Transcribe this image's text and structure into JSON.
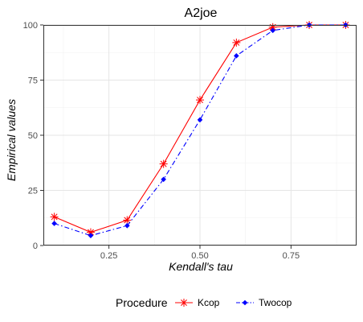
{
  "chart_data": {
    "type": "line",
    "title": "A2joe",
    "xlabel": "Kendall's tau",
    "ylabel": "Empirical values",
    "xlim": [
      0.07,
      0.93
    ],
    "ylim": [
      0,
      100
    ],
    "x_ticks": [
      0.25,
      0.5,
      0.75
    ],
    "x_tick_labels": [
      "0.25",
      "0.50",
      "0.75"
    ],
    "y_ticks": [
      0,
      25,
      50,
      75,
      100
    ],
    "y_tick_labels": [
      "0",
      "25",
      "50",
      "75",
      "100"
    ],
    "grid": true,
    "legend": {
      "title": "Procedure",
      "position": "bottom"
    },
    "series": [
      {
        "name": "Kcop",
        "color": "#ff0000",
        "marker": "asterisk",
        "line_style": "solid",
        "x": [
          0.1,
          0.2,
          0.3,
          0.4,
          0.5,
          0.6,
          0.7,
          0.8,
          0.9
        ],
        "values": [
          13,
          6,
          11.5,
          37,
          66,
          92,
          99,
          100,
          100
        ]
      },
      {
        "name": "Twocop",
        "color": "#0000ff",
        "marker": "diamond",
        "line_style": "dashdot",
        "x": [
          0.1,
          0.2,
          0.3,
          0.4,
          0.5,
          0.6,
          0.7,
          0.8,
          0.9
        ],
        "values": [
          10,
          4.5,
          9,
          30,
          57,
          86,
          97.5,
          100,
          100
        ]
      }
    ]
  }
}
